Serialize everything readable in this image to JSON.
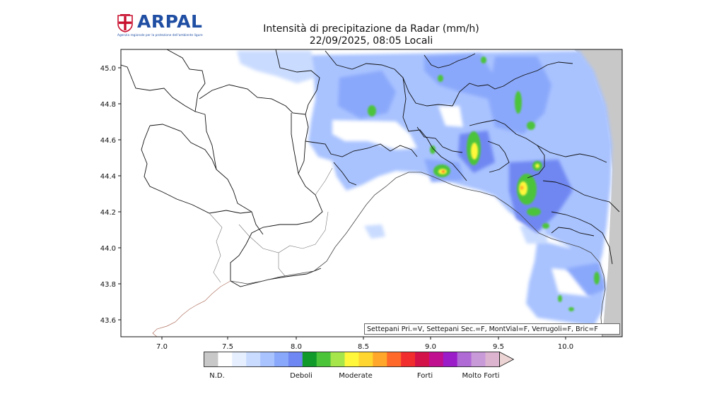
{
  "header": {
    "logo_text": "ARPAL",
    "logo_tagline": "Agenzia regionale per la protezione dell'ambiente ligure",
    "title_line1": "Intensità di precipitazione da Radar (mm/h)",
    "title_line2": "22/09/2025, 08:05 Locali"
  },
  "map": {
    "x_ticks": [
      "7.0",
      "7.5",
      "8.0",
      "8.5",
      "9.0",
      "9.5",
      "10.0"
    ],
    "y_ticks": [
      "45.0",
      "44.8",
      "44.6",
      "44.4",
      "44.2",
      "44.0",
      "43.8",
      "43.6"
    ],
    "lon_range": [
      6.7,
      10.4
    ],
    "lat_range": [
      43.5,
      45.1
    ],
    "radar_status": "Settepani Pri.=V, Settepani Sec.=F, MontVial=F, Verrugoli=F, Bric=F"
  },
  "colorbar": {
    "labels": {
      "nd": "N.D.",
      "deboli": "Deboli",
      "moderate": "Moderate",
      "forti": "Forti",
      "molto_forti": "Molto Forti"
    },
    "colors": [
      "#c8c8c8",
      "#ffffff",
      "#e6efff",
      "#c9dbff",
      "#a9c3ff",
      "#8aa8fb",
      "#6f87f2",
      "#0f9a2a",
      "#4cc43a",
      "#a6e64b",
      "#fff73a",
      "#ffd630",
      "#ffa72a",
      "#ff6a2a",
      "#f22d2d",
      "#d4124a",
      "#c01090",
      "#9b1cc9",
      "#b06ad6",
      "#c99ad8",
      "#dcb4cf",
      "#ecd4d4"
    ]
  },
  "style": {
    "nd_gray": "#c8c8c8",
    "light_rain": "#8aa8fb",
    "moderate_rain": "#4cc43a",
    "strong_rain": "#fff73a"
  }
}
